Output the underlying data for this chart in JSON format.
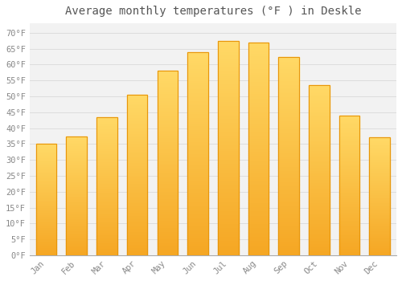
{
  "title": "Average monthly temperatures (°F ) in Deskle",
  "months": [
    "Jan",
    "Feb",
    "Mar",
    "Apr",
    "May",
    "Jun",
    "Jul",
    "Aug",
    "Sep",
    "Oct",
    "Nov",
    "Dec"
  ],
  "values": [
    35,
    37.5,
    43.5,
    50.5,
    58,
    64,
    67.5,
    67,
    62.5,
    53.5,
    44,
    37
  ],
  "bar_color_bottom": "#F5A623",
  "bar_color_top": "#FFD966",
  "bar_edge_color": "#E8960A",
  "background_color": "#FFFFFF",
  "plot_bg_color": "#F2F2F2",
  "grid_color": "#DDDDDD",
  "title_color": "#555555",
  "tick_color": "#888888",
  "yticks": [
    0,
    5,
    10,
    15,
    20,
    25,
    30,
    35,
    40,
    45,
    50,
    55,
    60,
    65,
    70
  ],
  "ytick_labels": [
    "0°F",
    "5°F",
    "10°F",
    "15°F",
    "20°F",
    "25°F",
    "30°F",
    "35°F",
    "40°F",
    "45°F",
    "50°F",
    "55°F",
    "60°F",
    "65°F",
    "70°F"
  ],
  "ylim": [
    0,
    73
  ],
  "title_fontsize": 10,
  "tick_fontsize": 7.5,
  "bar_width": 0.68
}
